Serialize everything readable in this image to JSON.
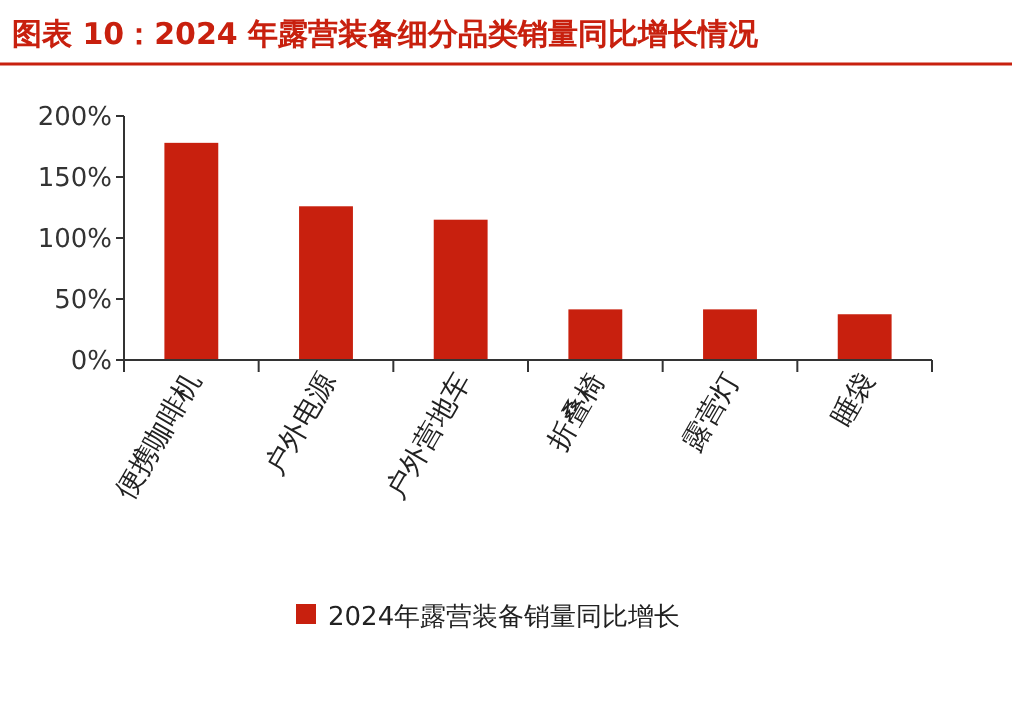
{
  "chart_data": {
    "type": "bar",
    "title": "图表 10：2024 年露营装备细分品类销量同比增长情况",
    "categories": [
      "便携咖啡机",
      "户外电源",
      "户外营地车",
      "折叠椅",
      "露营灯",
      "睡袋"
    ],
    "series": [
      {
        "name": "2024年露营装备销量同比增长",
        "color": "#c8200e",
        "values": [
          178,
          126,
          115,
          41.5,
          41.5,
          37.5
        ]
      }
    ],
    "ylim": [
      0,
      200
    ],
    "yticks": [
      {
        "value": 0,
        "label": "0%"
      },
      {
        "value": 50,
        "label": "50%"
      },
      {
        "value": 100,
        "label": "100%"
      },
      {
        "value": 150,
        "label": "150%"
      },
      {
        "value": 200,
        "label": "200%"
      }
    ],
    "grid": false,
    "legend": "bottom"
  }
}
